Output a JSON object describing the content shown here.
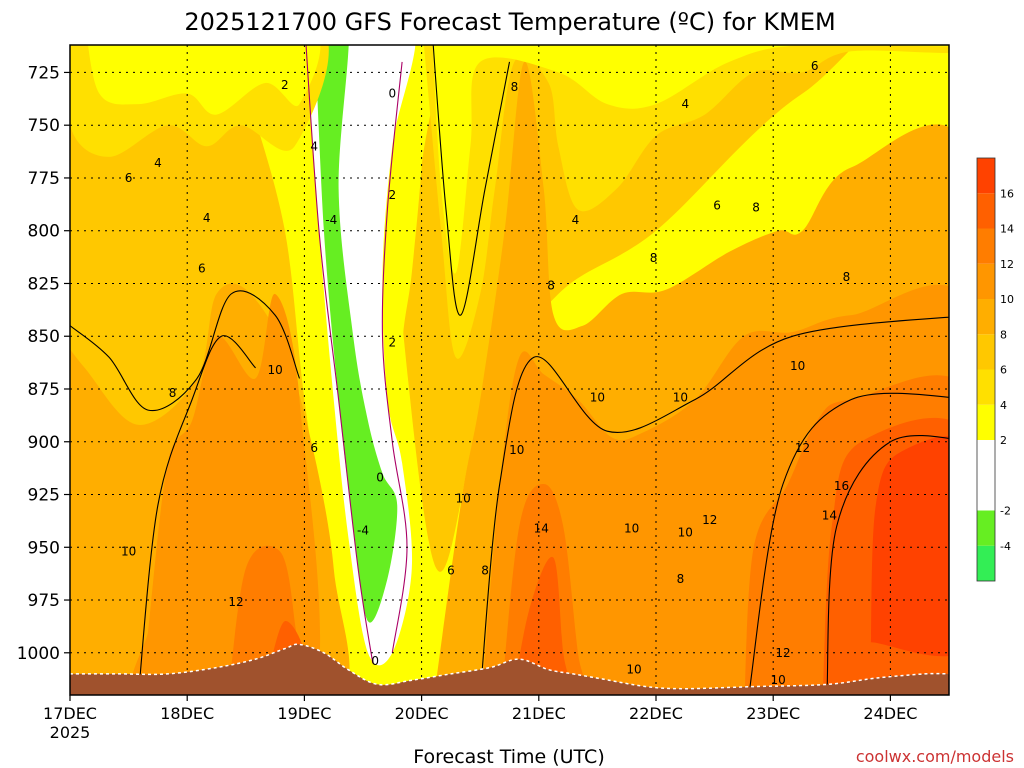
{
  "chart_data": {
    "type": "heatmap",
    "title": "2025121700 GFS Forecast Temperature (ºC) for KMEM",
    "xlabel": "Forecast Time (UTC)",
    "ylabel": "",
    "credit": "coolwx.com/models",
    "x_ticks": [
      "17DEC",
      "18DEC",
      "19DEC",
      "20DEC",
      "21DEC",
      "22DEC",
      "23DEC",
      "24DEC"
    ],
    "x_year": "2025",
    "xlim_hours": [
      0,
      180
    ],
    "y_ticks": [
      725,
      750,
      775,
      800,
      825,
      850,
      875,
      900,
      925,
      950,
      975,
      1000
    ],
    "ylim_hpa": [
      712,
      1020
    ],
    "colorbar": {
      "levels": [
        {
          "lo": -6,
          "hi": -4,
          "color": "#33ee55"
        },
        {
          "lo": -4,
          "hi": -2,
          "color": "#66ee22"
        },
        {
          "lo": -2,
          "hi": 2,
          "color": "#ffffff"
        },
        {
          "lo": 2,
          "hi": 4,
          "color": "#ffff00"
        },
        {
          "lo": 4,
          "hi": 6,
          "color": "#ffe000"
        },
        {
          "lo": 6,
          "hi": 8,
          "color": "#ffc800"
        },
        {
          "lo": 8,
          "hi": 10,
          "color": "#ffae00"
        },
        {
          "lo": 10,
          "hi": 12,
          "color": "#ff9600"
        },
        {
          "lo": 12,
          "hi": 14,
          "color": "#ff7d00"
        },
        {
          "lo": 14,
          "hi": 16,
          "color": "#ff6000"
        },
        {
          "lo": 16,
          "hi": 18,
          "color": "#ff4200"
        }
      ],
      "labels": [
        "16",
        "14",
        "12",
        "10",
        "8",
        "6",
        "4",
        "2",
        "-2",
        "-4"
      ]
    },
    "ground_color": "#a0522d",
    "contour_labels": [
      {
        "t": 44,
        "p": 731,
        "text": "2"
      },
      {
        "t": 18,
        "p": 768,
        "text": "4"
      },
      {
        "t": 50,
        "p": 760,
        "text": "4"
      },
      {
        "t": 28,
        "p": 794,
        "text": "4"
      },
      {
        "t": 12,
        "p": 775,
        "text": "6"
      },
      {
        "t": 27,
        "p": 818,
        "text": "6"
      },
      {
        "t": 21,
        "p": 877,
        "text": "8"
      },
      {
        "t": 42,
        "p": 866,
        "text": "10"
      },
      {
        "t": 12,
        "p": 952,
        "text": "10"
      },
      {
        "t": 34,
        "p": 976,
        "text": "12"
      },
      {
        "t": 50,
        "p": 903,
        "text": "6"
      },
      {
        "t": 53.5,
        "p": 795,
        "text": "-4"
      },
      {
        "t": 66,
        "p": 735,
        "text": "0"
      },
      {
        "t": 66,
        "p": 783,
        "text": "2"
      },
      {
        "t": 66,
        "p": 853,
        "text": "2"
      },
      {
        "t": 63.5,
        "p": 917,
        "text": "0"
      },
      {
        "t": 60,
        "p": 942,
        "text": "-4"
      },
      {
        "t": 62.5,
        "p": 1004,
        "text": "0"
      },
      {
        "t": 78,
        "p": 961,
        "text": "6"
      },
      {
        "t": 85,
        "p": 961,
        "text": "8"
      },
      {
        "t": 80.5,
        "p": 927,
        "text": "10"
      },
      {
        "t": 91.5,
        "p": 904,
        "text": "10"
      },
      {
        "t": 96.5,
        "p": 941,
        "text": "14"
      },
      {
        "t": 91,
        "p": 732,
        "text": "8"
      },
      {
        "t": 103.5,
        "p": 795,
        "text": "4"
      },
      {
        "t": 98.5,
        "p": 826,
        "text": "8"
      },
      {
        "t": 108,
        "p": 879,
        "text": "10"
      },
      {
        "t": 115,
        "p": 941,
        "text": "10"
      },
      {
        "t": 115.5,
        "p": 1008,
        "text": "10"
      },
      {
        "t": 125,
        "p": 879,
        "text": "10"
      },
      {
        "t": 126,
        "p": 943,
        "text": "10"
      },
      {
        "t": 125,
        "p": 965,
        "text": "8"
      },
      {
        "t": 126,
        "p": 740,
        "text": "4"
      },
      {
        "t": 119.5,
        "p": 813,
        "text": "8"
      },
      {
        "t": 132.5,
        "p": 788,
        "text": "6"
      },
      {
        "t": 140.5,
        "p": 789,
        "text": "8"
      },
      {
        "t": 131,
        "p": 937,
        "text": "12"
      },
      {
        "t": 152.5,
        "p": 722,
        "text": "6"
      },
      {
        "t": 149,
        "p": 864,
        "text": "10"
      },
      {
        "t": 150,
        "p": 903,
        "text": "12"
      },
      {
        "t": 159,
        "p": 822,
        "text": "8"
      },
      {
        "t": 158,
        "p": 921,
        "text": "16"
      },
      {
        "t": 155.5,
        "p": 935,
        "text": "14"
      },
      {
        "t": 146,
        "p": 1000,
        "text": "12"
      },
      {
        "t": 145,
        "p": 1013,
        "text": "10"
      }
    ]
  }
}
